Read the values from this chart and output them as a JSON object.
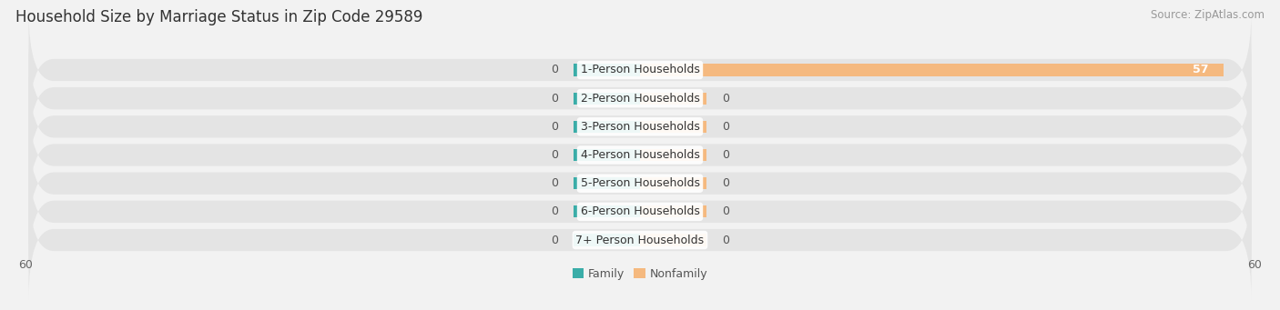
{
  "title": "Household Size by Marriage Status in Zip Code 29589",
  "source": "Source: ZipAtlas.com",
  "categories": [
    "7+ Person Households",
    "6-Person Households",
    "5-Person Households",
    "4-Person Households",
    "3-Person Households",
    "2-Person Households",
    "1-Person Households"
  ],
  "family_values": [
    0,
    0,
    0,
    0,
    0,
    0,
    0
  ],
  "nonfamily_values": [
    0,
    0,
    0,
    0,
    0,
    0,
    57
  ],
  "family_color": "#3AADA8",
  "nonfamily_color": "#F5B97F",
  "xlim_abs": 60,
  "bg_color": "#F2F2F2",
  "row_bg_color": "#E4E4E4",
  "title_fontsize": 12,
  "source_fontsize": 8.5,
  "label_fontsize": 9,
  "value_fontsize": 9,
  "tick_fontsize": 9,
  "stub_size": 6.5
}
